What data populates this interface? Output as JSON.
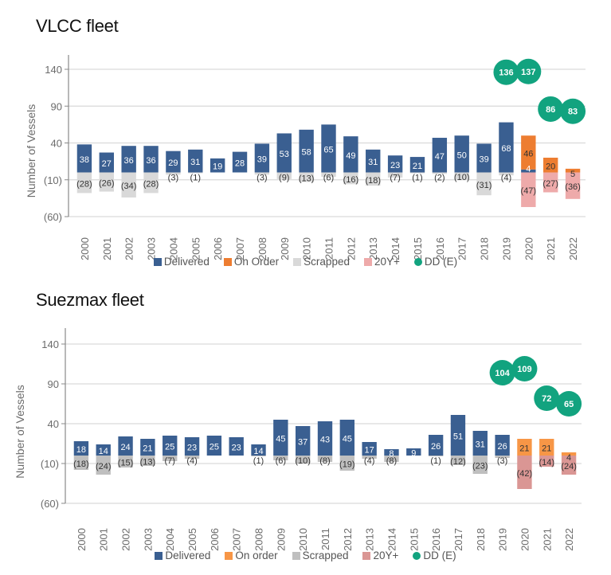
{
  "chart_data": [
    {
      "type": "bar",
      "title": "VLCC fleet",
      "xlabel": "",
      "ylabel": "Number of Vessels",
      "ylim": [
        -60,
        160
      ],
      "yticks": [
        140,
        90,
        40,
        -10,
        -60
      ],
      "ytick_labels": [
        "140",
        "90",
        "40",
        "(10)",
        "(60)"
      ],
      "grid": true,
      "legend_position": "bottom",
      "categories": [
        "2000",
        "2001",
        "2002",
        "2003",
        "2004",
        "2005",
        "2006",
        "2007",
        "2008",
        "2009",
        "2010",
        "2011",
        "2012",
        "2013",
        "2014",
        "2015",
        "2016",
        "2017",
        "2018",
        "2019",
        "2020",
        "2021",
        "2022"
      ],
      "series": [
        {
          "name": "Delivered",
          "color": "#3a5f91",
          "kind": "bar",
          "values": [
            38,
            27,
            36,
            36,
            29,
            31,
            19,
            28,
            39,
            53,
            58,
            65,
            49,
            31,
            23,
            21,
            47,
            50,
            39,
            68,
            4,
            null,
            null
          ]
        },
        {
          "name": "On Order",
          "color": "#ed7d31",
          "kind": "bar",
          "values": [
            null,
            null,
            null,
            null,
            null,
            null,
            null,
            null,
            null,
            null,
            null,
            null,
            null,
            null,
            null,
            null,
            null,
            null,
            null,
            null,
            46,
            20,
            5
          ]
        },
        {
          "name": "Scrapped",
          "color": "#d9d9d9",
          "kind": "bar",
          "values": [
            -28,
            -26,
            -34,
            -28,
            -3,
            -1,
            null,
            null,
            -3,
            -9,
            -13,
            -6,
            -16,
            -18,
            -7,
            -1,
            -2,
            -10,
            -31,
            -4,
            null,
            null,
            null
          ]
        },
        {
          "name": "20Y+",
          "color": "#eeaaaa",
          "kind": "bar",
          "values": [
            null,
            null,
            null,
            null,
            null,
            null,
            null,
            null,
            null,
            null,
            null,
            null,
            null,
            null,
            null,
            null,
            null,
            null,
            null,
            null,
            -47,
            -27,
            -36
          ]
        },
        {
          "name": "DD (E)",
          "color": "#12a37f",
          "kind": "bubble",
          "values": [
            null,
            null,
            null,
            null,
            null,
            null,
            null,
            null,
            null,
            null,
            null,
            null,
            null,
            null,
            null,
            null,
            null,
            null,
            null,
            136,
            137,
            86,
            83
          ]
        }
      ]
    },
    {
      "type": "bar",
      "title": "Suezmax fleet",
      "xlabel": "",
      "ylabel": "Number of Vessels",
      "ylim": [
        -60,
        160
      ],
      "yticks": [
        140,
        90,
        40,
        -10,
        -60
      ],
      "ytick_labels": [
        "140",
        "90",
        "40",
        "(10)",
        "(60)"
      ],
      "grid": true,
      "legend_position": "bottom",
      "categories": [
        "2000",
        "2001",
        "2002",
        "2003",
        "2004",
        "2005",
        "2006",
        "2007",
        "2008",
        "2009",
        "2010",
        "2011",
        "2012",
        "2013",
        "2014",
        "2015",
        "2016",
        "2017",
        "2018",
        "2019",
        "2020",
        "2021",
        "2022"
      ],
      "series": [
        {
          "name": "Delivered",
          "color": "#3a5f91",
          "kind": "bar",
          "values": [
            18,
            14,
            24,
            21,
            25,
            23,
            25,
            23,
            14,
            45,
            37,
            43,
            45,
            17,
            8,
            9,
            26,
            51,
            31,
            26,
            null,
            null,
            null
          ]
        },
        {
          "name": "On order",
          "color": "#f79646",
          "kind": "bar",
          "values": [
            null,
            null,
            null,
            null,
            null,
            null,
            null,
            null,
            null,
            null,
            null,
            null,
            null,
            null,
            null,
            null,
            null,
            null,
            null,
            null,
            21,
            21,
            4
          ]
        },
        {
          "name": "Scrapped",
          "color": "#bfbfbf",
          "kind": "bar",
          "values": [
            -18,
            -24,
            -15,
            -13,
            -7,
            -4,
            null,
            null,
            -1,
            -6,
            -10,
            -8,
            -19,
            -4,
            -8,
            null,
            -1,
            -12,
            -23,
            -3,
            null,
            null,
            null
          ]
        },
        {
          "name": "20Y+",
          "color": "#da9694",
          "kind": "bar",
          "values": [
            null,
            null,
            null,
            null,
            null,
            null,
            null,
            null,
            null,
            null,
            null,
            null,
            null,
            null,
            null,
            null,
            null,
            null,
            null,
            null,
            -42,
            -14,
            -24
          ]
        },
        {
          "name": "DD (E)",
          "color": "#12a37f",
          "kind": "bubble",
          "values": [
            null,
            null,
            null,
            null,
            null,
            null,
            null,
            null,
            null,
            null,
            null,
            null,
            null,
            null,
            null,
            null,
            null,
            null,
            null,
            104,
            109,
            72,
            65
          ]
        }
      ]
    }
  ]
}
